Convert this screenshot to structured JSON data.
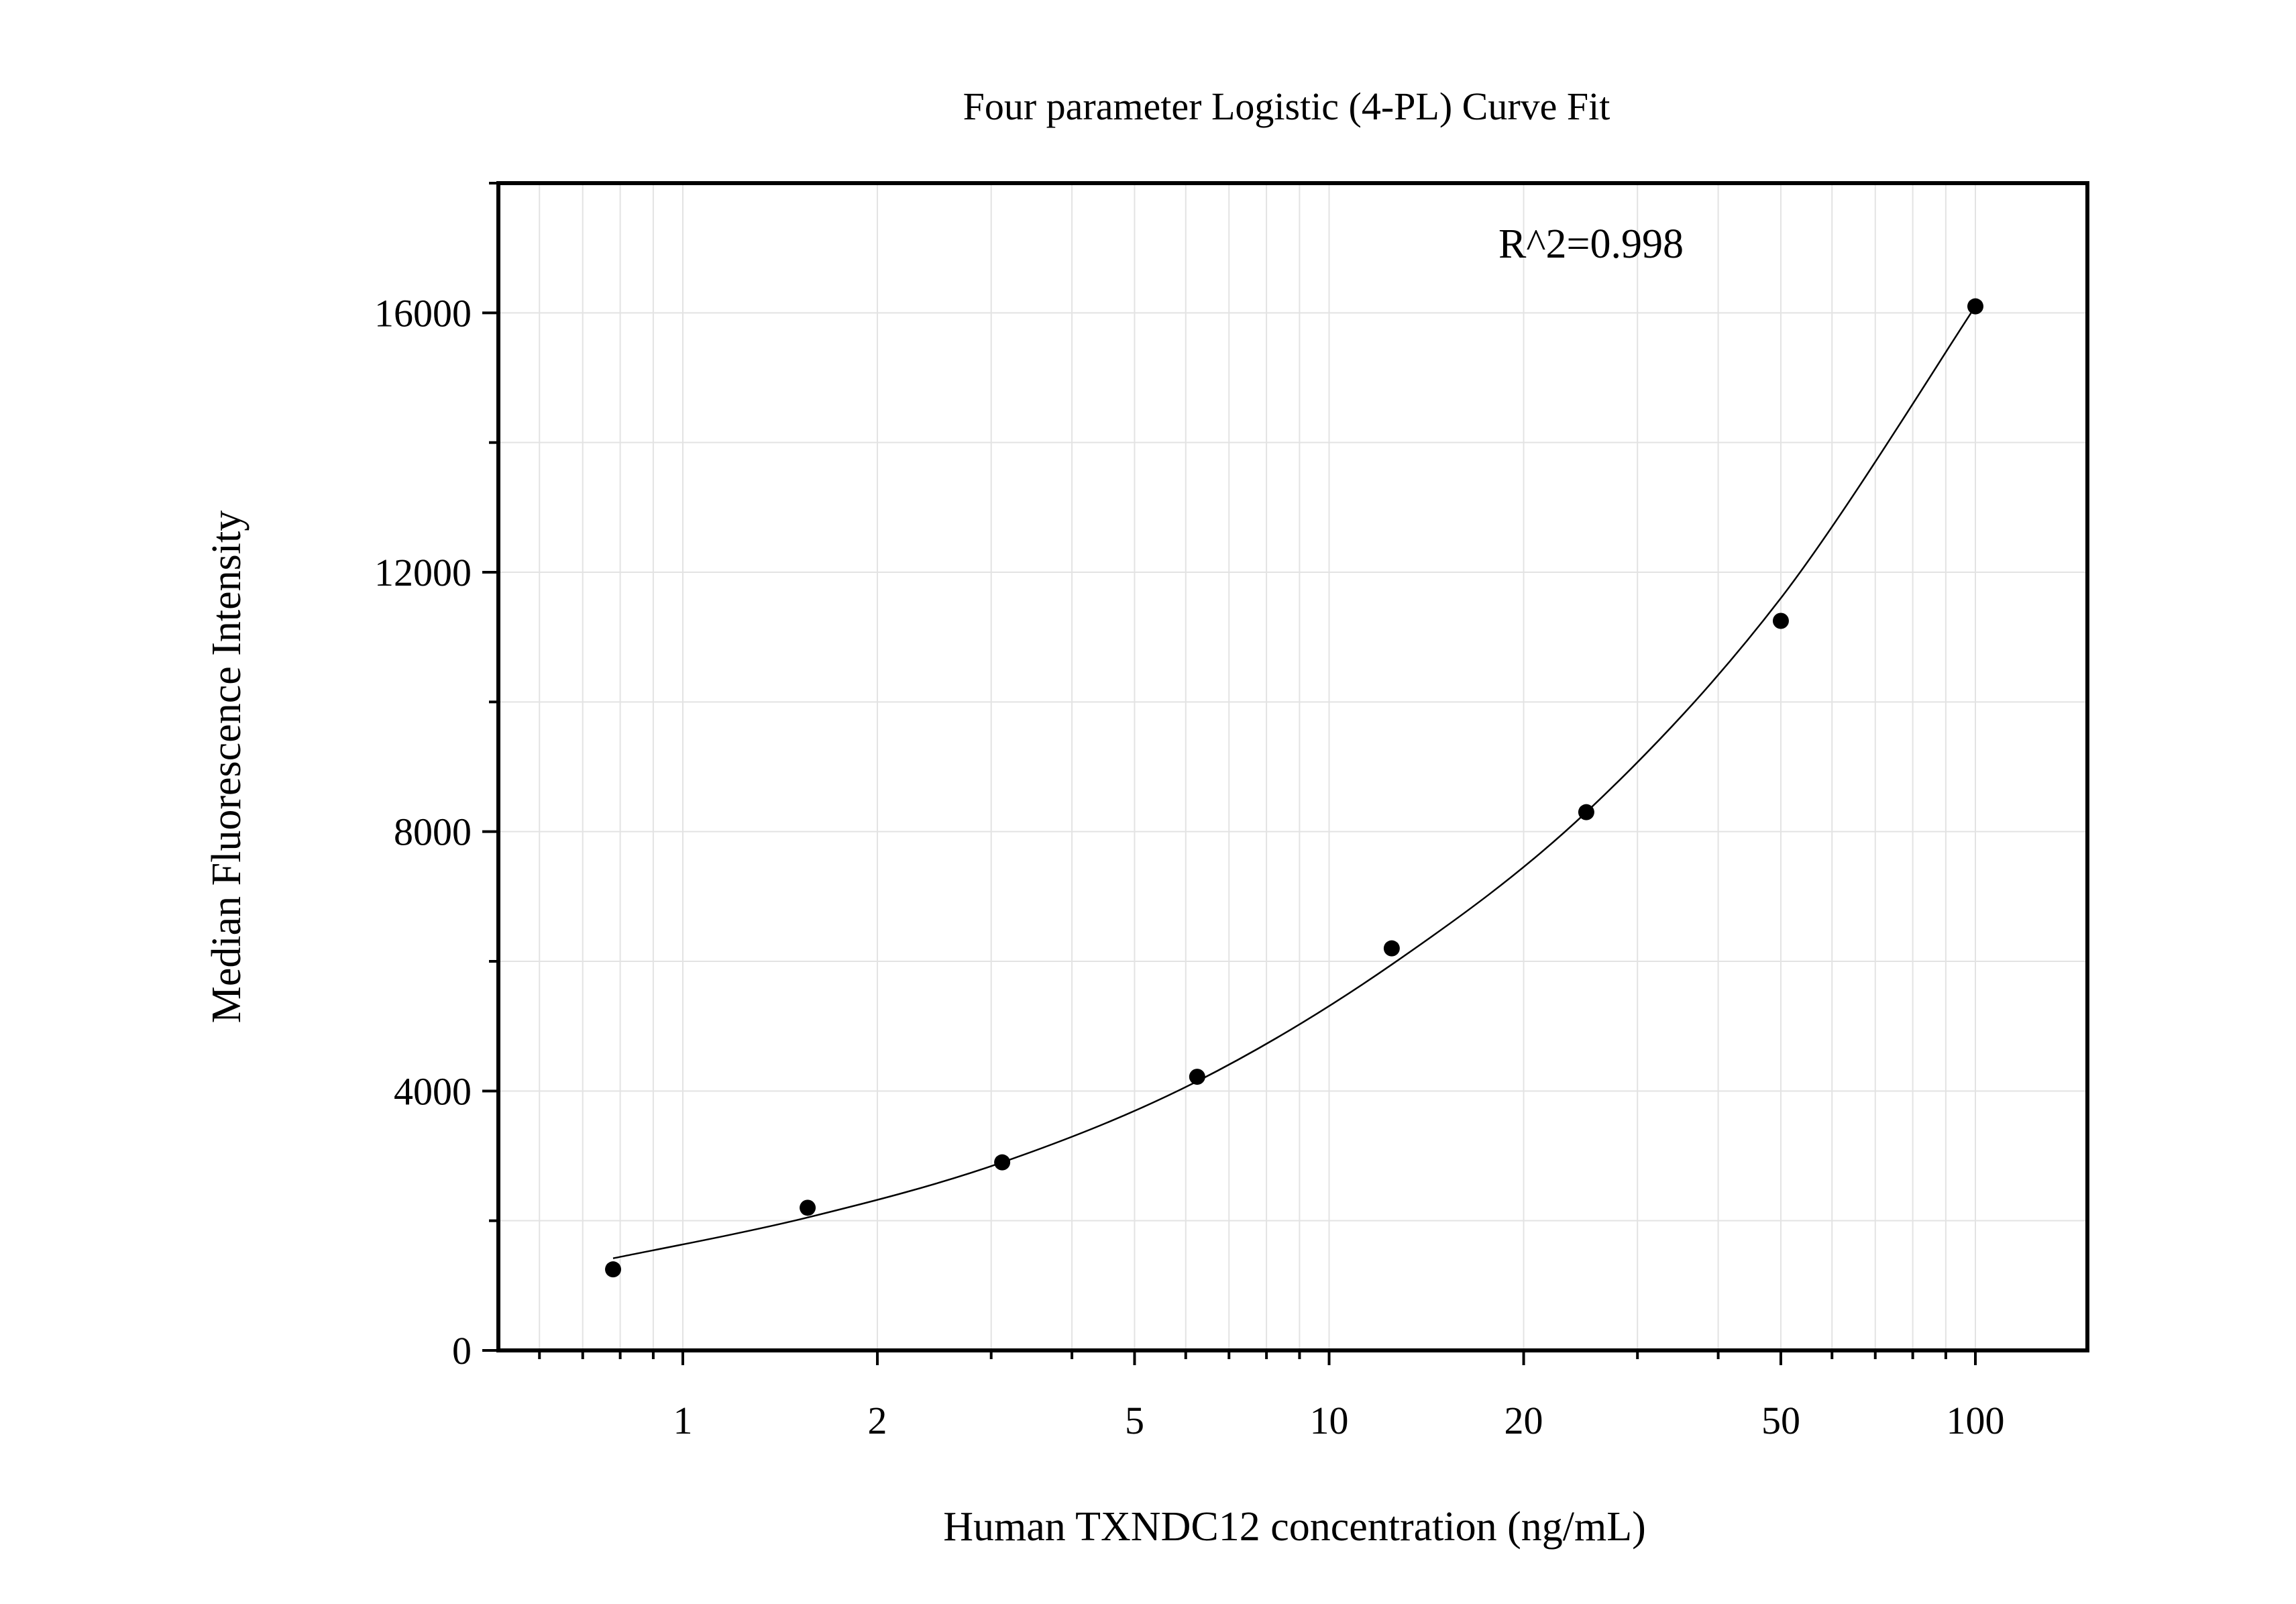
{
  "chart_data": {
    "type": "scatter",
    "title": "Four parameter Logistic (4-PL) Curve Fit",
    "xlabel": "Human TXNDC12 concentration (ng/mL)",
    "ylabel": "Median Fluorescence Intensity",
    "x_scale": "log",
    "xlim": [
      0.5,
      150
    ],
    "ylim": [
      0,
      18000
    ],
    "grid": true,
    "x_ticks": [
      1,
      2,
      5,
      10,
      20,
      50,
      100
    ],
    "x_tick_labels": [
      "1",
      "2",
      "5",
      "10",
      "20",
      "50",
      "100"
    ],
    "y_ticks": [
      0,
      4000,
      8000,
      12000,
      16000
    ],
    "y_tick_labels": [
      "0",
      "4000",
      "8000",
      "12000",
      "16000"
    ],
    "annotation": "R^2=0.998",
    "series": [
      {
        "type": "scatter",
        "x": [
          0.78,
          1.56,
          3.12,
          6.25,
          12.5,
          25,
          50,
          100
        ],
        "y": [
          1250,
          2200,
          2900,
          4220,
          6200,
          8300,
          11250,
          16100
        ]
      },
      {
        "type": "line",
        "x": [
          0.78,
          1.56,
          3.12,
          6.25,
          12.5,
          25,
          50,
          100
        ],
        "y": [
          1420,
          2050,
          2900,
          4150,
          5950,
          8300,
          11600,
          16100
        ]
      }
    ],
    "colors": {
      "points": "#000000",
      "curve": "#000000",
      "grid": "#e3e3e3",
      "frame": "#000000"
    }
  }
}
